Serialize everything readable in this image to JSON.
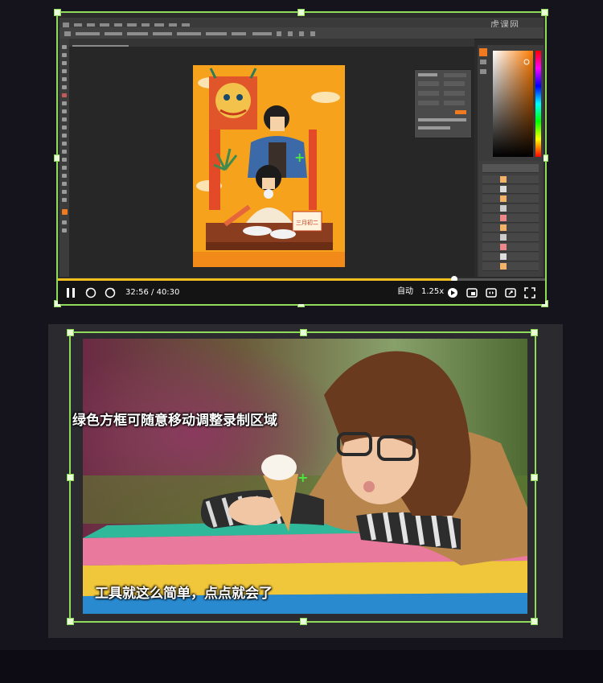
{
  "top_player": {
    "current_time": "32:56",
    "total_time": "40:30",
    "time_separator": "/",
    "progress_fraction": 0.813,
    "quality_label": "自动",
    "speed_label": "1.25x",
    "watermark": "虎课网",
    "accent_color": "#f0c020",
    "frame_color": "#8fdc5a",
    "icons": [
      "pause-icon",
      "rewind-icon",
      "forward-icon",
      "danmaku-icon",
      "picture-in-picture-icon",
      "widescreen-icon",
      "fullscreen-web-icon",
      "fullscreen-icon"
    ]
  },
  "artwork": {
    "stamp_text": "三月初二"
  },
  "bottom_demo": {
    "caption_top": "绿色方框可随意移动调整录制区域",
    "caption_bottom": "工具就这么简单，点点就会了",
    "frame_color": "#8fdc5a"
  }
}
